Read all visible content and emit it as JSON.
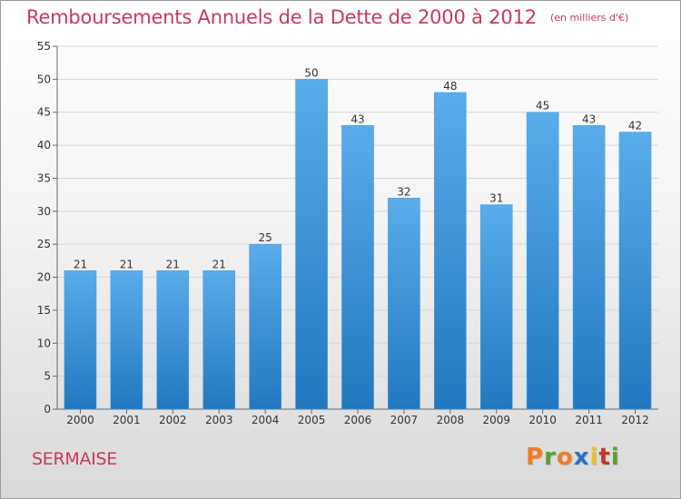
{
  "header": {
    "title": "Remboursements Annuels de la Dette de 2000 à 2012",
    "unit": "(en milliers d'€)"
  },
  "footer": {
    "commune": "SERMAISE",
    "logo": "Proxiti"
  },
  "colors": {
    "title": "#c63a5c",
    "bar_top": "#5aacea",
    "bar_bottom": "#2278bf",
    "logo_letters": [
      "#f07c2a",
      "#5aa02c",
      "#f07c2a",
      "#2a6fc9",
      "#e8c12a",
      "#c0392b",
      "#5aa02c"
    ]
  },
  "chart_data": {
    "type": "bar",
    "categories": [
      "2000",
      "2001",
      "2002",
      "2003",
      "2004",
      "2005",
      "2006",
      "2007",
      "2008",
      "2009",
      "2010",
      "2011",
      "2012"
    ],
    "values": [
      21,
      21,
      21,
      21,
      25,
      50,
      43,
      32,
      48,
      31,
      45,
      43,
      42
    ],
    "data_labels": [
      "21",
      "21",
      "21",
      "21",
      "25",
      "50",
      "43",
      "32",
      "48",
      "31",
      "45",
      "43",
      "42"
    ],
    "ylim": [
      0,
      55
    ],
    "yticks": [
      0,
      5,
      10,
      15,
      20,
      25,
      30,
      35,
      40,
      45,
      50,
      55
    ],
    "grid": true,
    "legend": "none"
  }
}
